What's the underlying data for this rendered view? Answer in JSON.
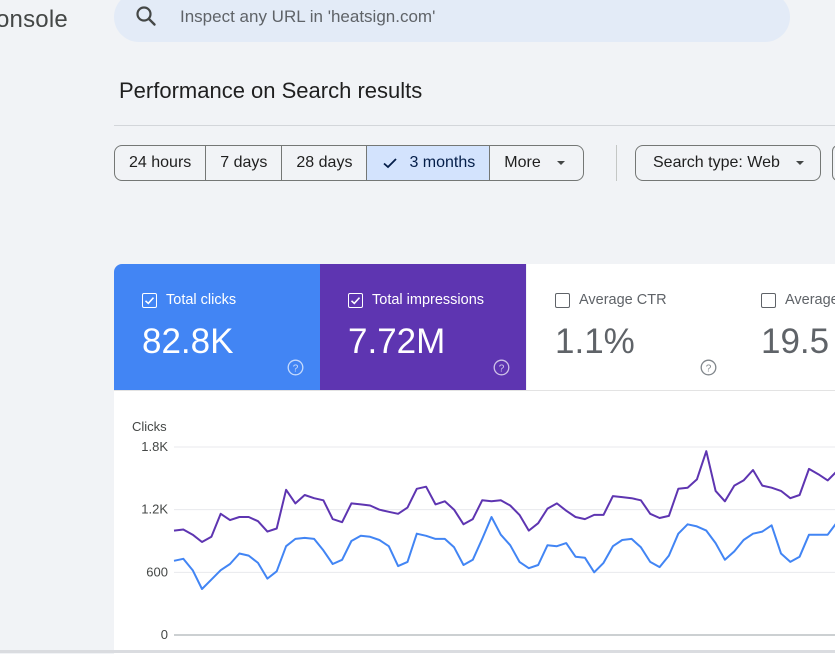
{
  "app": {
    "logo_text": "onsole"
  },
  "search": {
    "placeholder": "Inspect any URL in 'heatsign.com'"
  },
  "page": {
    "title": "Performance on Search results"
  },
  "date_filters": [
    "24 hours",
    "7 days",
    "28 days",
    "3 months",
    "More"
  ],
  "selected_filter": "3 months",
  "search_type": "Search type: Web",
  "metrics": [
    {
      "label": "Total clicks",
      "value": "82.8K",
      "checked": true,
      "color": "#4285f4"
    },
    {
      "label": "Total impressions",
      "value": "7.72M",
      "checked": true,
      "color": "#5e35b1"
    },
    {
      "label": "Average CTR",
      "value": "1.1%",
      "checked": false,
      "color": "#ffffff"
    },
    {
      "label": "Average",
      "value": "19.5",
      "checked": false,
      "color": "#ffffff"
    }
  ],
  "chart_data": {
    "type": "line",
    "ylabel": "Clicks",
    "yticks": [
      "1.8K",
      "1.2K",
      "600",
      "0"
    ],
    "ylim": [
      0,
      1800
    ],
    "grid": true,
    "series": [
      {
        "color": "#5e35b1",
        "values": [
          1000,
          1010,
          960,
          890,
          940,
          1160,
          1100,
          1130,
          1130,
          1090,
          990,
          1020,
          1390,
          1260,
          1340,
          1310,
          1290,
          1110,
          1080,
          1260,
          1250,
          1240,
          1200,
          1180,
          1160,
          1220,
          1400,
          1420,
          1250,
          1280,
          1200,
          1060,
          1110,
          1290,
          1280,
          1290,
          1240,
          1150,
          1000,
          1070,
          1210,
          1260,
          1190,
          1130,
          1110,
          1150,
          1150,
          1330,
          1320,
          1310,
          1290,
          1160,
          1120,
          1140,
          1400,
          1410,
          1490,
          1760,
          1380,
          1280,
          1430,
          1480,
          1580,
          1430,
          1410,
          1380,
          1310,
          1340,
          1590,
          1540,
          1480,
          1570
        ]
      },
      {
        "color": "#4285f4",
        "values": [
          710,
          730,
          620,
          440,
          530,
          620,
          680,
          780,
          760,
          690,
          540,
          610,
          850,
          920,
          930,
          920,
          810,
          680,
          720,
          900,
          950,
          940,
          910,
          850,
          660,
          700,
          970,
          950,
          920,
          920,
          840,
          670,
          720,
          920,
          1130,
          960,
          860,
          700,
          640,
          670,
          860,
          850,
          880,
          750,
          740,
          600,
          690,
          850,
          910,
          920,
          840,
          700,
          650,
          760,
          970,
          1060,
          1040,
          1000,
          880,
          720,
          800,
          910,
          970,
          990,
          1050,
          780,
          700,
          750,
          960,
          960,
          960,
          1080
        ]
      }
    ]
  }
}
